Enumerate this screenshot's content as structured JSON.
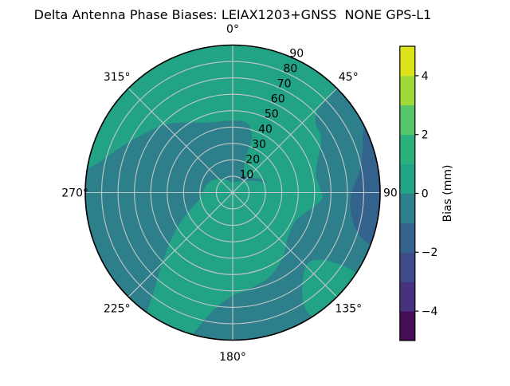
{
  "figure": {
    "title": "Delta Antenna Phase Biases: LEIAX1203+GNSS  NONE GPS-L1",
    "background": "#ffffff"
  },
  "polar_axes": {
    "angular_ticks": [
      {
        "label": "0°",
        "deg": 0
      },
      {
        "label": "45°",
        "deg": 45
      },
      {
        "label": "90",
        "deg": 90
      },
      {
        "label": "135°",
        "deg": 135
      },
      {
        "label": "180°",
        "deg": 180
      },
      {
        "label": "225°",
        "deg": 225
      },
      {
        "label": "270°",
        "deg": 270
      },
      {
        "label": "315°",
        "deg": 315
      }
    ],
    "radial_ticks": [
      {
        "label": "10",
        "value": 10
      },
      {
        "label": "20",
        "value": 20
      },
      {
        "label": "30",
        "value": 30
      },
      {
        "label": "40",
        "value": 40
      },
      {
        "label": "50",
        "value": 50
      },
      {
        "label": "60",
        "value": 60
      },
      {
        "label": "70",
        "value": 70
      },
      {
        "label": "80",
        "value": 80
      },
      {
        "label": "90",
        "value": 90
      }
    ],
    "radial_label_angle_deg": 22.5,
    "grid_color": "#c9cbca",
    "outline_color": "#000000",
    "label_color": "#000000"
  },
  "colorbar": {
    "label": "Bias (mm)",
    "min": -5,
    "max": 5,
    "ticks": [
      {
        "label": "4",
        "value": 4
      },
      {
        "label": "2",
        "value": 2
      },
      {
        "label": "0",
        "value": 0
      },
      {
        "label": "−2",
        "value": -2
      },
      {
        "label": "−4",
        "value": -4
      }
    ],
    "segment_colors_bottom_to_top": [
      "#440d56",
      "#46327e",
      "#3f4c8a",
      "#33638d",
      "#2e7f8c",
      "#23a385",
      "#2bb07e",
      "#54c568",
      "#a0da39",
      "#dce31b"
    ]
  },
  "chart_data": {
    "type": "heatmap",
    "projection": "polar",
    "title": "Delta Antenna Phase Biases: LEIAX1203+GNSS  NONE GPS-L1",
    "angular_ticks_deg": [
      0,
      45,
      90,
      135,
      180,
      225,
      270,
      315
    ],
    "radial_ticks": [
      10,
      20,
      30,
      40,
      50,
      60,
      70,
      80,
      90
    ],
    "radial_max": 90,
    "value_label": "Bias (mm)",
    "value_range_mm": [
      -5,
      5
    ],
    "contour_level_step_mm": 1,
    "base_bias_mm": [
      0,
      1
    ],
    "regions": [
      {
        "name": "west-band",
        "bias_mm": [
          -1,
          0
        ],
        "points_deg_r": [
          [
            215,
            93
          ],
          [
            222,
            93
          ],
          [
            232,
            93
          ],
          [
            243,
            93
          ],
          [
            254,
            93
          ],
          [
            265,
            93
          ],
          [
            276,
            93
          ],
          [
            284,
            82
          ],
          [
            294,
            72
          ],
          [
            305,
            64
          ],
          [
            316,
            58
          ],
          [
            327,
            51
          ],
          [
            338,
            46
          ],
          [
            350,
            44
          ],
          [
            2,
            44
          ],
          [
            12,
            43
          ],
          [
            19,
            36
          ],
          [
            20,
            26
          ],
          [
            24,
            17
          ],
          [
            36,
            13
          ],
          [
            52,
            15
          ],
          [
            64,
            19
          ],
          [
            73,
            22
          ],
          [
            62,
            15
          ],
          [
            45,
            10
          ],
          [
            20,
            7
          ],
          [
            358,
            6
          ],
          [
            338,
            8
          ],
          [
            315,
            12
          ],
          [
            292,
            16
          ],
          [
            272,
            18
          ],
          [
            258,
            21
          ],
          [
            248,
            28
          ],
          [
            240,
            37
          ],
          [
            232,
            48
          ],
          [
            225,
            61
          ],
          [
            219,
            76
          ],
          [
            216,
            88
          ]
        ]
      },
      {
        "name": "east-lobe",
        "bias_mm": [
          -1,
          0
        ],
        "points_deg_r": [
          [
            45,
            93
          ],
          [
            53,
            93
          ],
          [
            61,
            93
          ],
          [
            69,
            93
          ],
          [
            77,
            93
          ],
          [
            85,
            93
          ],
          [
            93,
            93
          ],
          [
            101,
            93
          ],
          [
            109,
            93
          ],
          [
            117,
            93
          ],
          [
            125,
            93
          ],
          [
            133,
            93
          ],
          [
            141,
            93
          ],
          [
            149,
            93
          ],
          [
            157,
            93
          ],
          [
            165,
            93
          ],
          [
            173,
            93
          ],
          [
            181,
            93
          ],
          [
            189,
            93
          ],
          [
            196,
            93
          ],
          [
            194,
            84
          ],
          [
            191,
            76
          ],
          [
            186,
            68
          ],
          [
            180,
            63
          ],
          [
            172,
            60
          ],
          [
            164,
            58
          ],
          [
            156,
            56
          ],
          [
            149,
            53
          ],
          [
            142,
            50
          ],
          [
            135,
            46
          ],
          [
            128,
            43
          ],
          [
            121,
            42
          ],
          [
            114,
            42
          ],
          [
            107,
            45
          ],
          [
            100,
            50
          ],
          [
            93,
            55
          ],
          [
            86,
            53
          ],
          [
            78,
            52
          ],
          [
            70,
            55
          ],
          [
            63,
            60
          ],
          [
            57,
            64
          ],
          [
            50,
            66
          ],
          [
            46,
            72
          ],
          [
            45,
            84
          ]
        ]
      },
      {
        "name": "east-edge-deep",
        "bias_mm": [
          -2,
          -1
        ],
        "points_deg_r": [
          [
            62,
            93
          ],
          [
            70,
            93
          ],
          [
            78,
            93
          ],
          [
            86,
            93
          ],
          [
            94,
            93
          ],
          [
            102,
            93
          ],
          [
            110,
            93
          ],
          [
            110,
            86
          ],
          [
            107,
            79
          ],
          [
            101,
            74
          ],
          [
            94,
            72
          ],
          [
            87,
            74
          ],
          [
            80,
            79
          ],
          [
            71,
            84
          ],
          [
            65,
            88
          ]
        ]
      },
      {
        "name": "southeast-green-patch",
        "bias_mm": [
          0,
          1
        ],
        "points_deg_r": [
          [
            124,
            93
          ],
          [
            131,
            93
          ],
          [
            138,
            93
          ],
          [
            145,
            93
          ],
          [
            148,
            86
          ],
          [
            146,
            76
          ],
          [
            140,
            67
          ],
          [
            133,
            63
          ],
          [
            127,
            68
          ],
          [
            124,
            78
          ],
          [
            123,
            86
          ]
        ]
      }
    ]
  }
}
